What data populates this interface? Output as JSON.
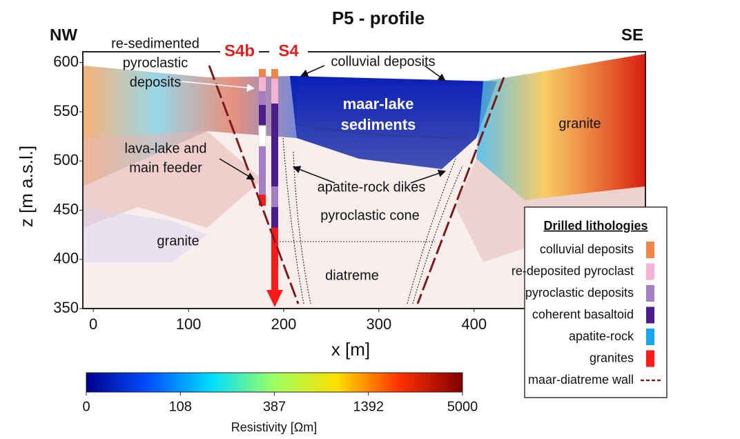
{
  "chart_data": {
    "type": "profile",
    "title": "P5 - profile",
    "corner_labels": [
      "NW",
      "SE"
    ],
    "xlabel": "x [m]",
    "ylabel": "z [m a.s.l.]",
    "xlim": [
      -11,
      580
    ],
    "ylim": [
      350,
      611
    ],
    "xticks": [
      0,
      100,
      200,
      300,
      400
    ],
    "yticks": [
      350,
      400,
      450,
      500,
      550,
      600
    ],
    "boreholes": [
      "S4b",
      "S4"
    ],
    "annotations": [
      {
        "lines": [
          "re-sedimented",
          "pyroclastic",
          "deposits"
        ]
      },
      {
        "lines": [
          "colluvial deposits"
        ]
      },
      {
        "lines": [
          "maar-lake",
          "sediments"
        ]
      },
      {
        "lines": [
          "granite"
        ]
      },
      {
        "lines": [
          "lava-lake and",
          "main feeder"
        ]
      },
      {
        "lines": [
          "apatite-rock dikes"
        ]
      },
      {
        "lines": [
          "pyroclastic cone"
        ]
      },
      {
        "lines": [
          "granite"
        ]
      },
      {
        "lines": [
          "diatreme"
        ]
      }
    ],
    "colorbar": {
      "label": "Resistivity [Ωm]",
      "ticks": [
        0,
        108,
        387,
        1392,
        5000
      ],
      "colors": [
        "#00008f",
        "#0050ff",
        "#00dfff",
        "#9fff60",
        "#ffdf00",
        "#ff3000",
        "#800000"
      ]
    },
    "legend": {
      "title": "Drilled lithologies",
      "items": [
        {
          "name": "colluvial deposits",
          "color": "#f0874a"
        },
        {
          "name": "re-deposited pyroclast",
          "color": "#f4b3d2"
        },
        {
          "name": "pyroclastic deposits",
          "color": "#a57fc4"
        },
        {
          "name": "coherent basaltoid",
          "color": "#4b1e8c"
        },
        {
          "name": "apatite-rock",
          "color": "#1aa6ee"
        },
        {
          "name": "granites",
          "color": "#ff1a1a"
        }
      ],
      "wall": {
        "name": "maar-diatreme wall",
        "color": "#7a1a1a"
      }
    }
  }
}
